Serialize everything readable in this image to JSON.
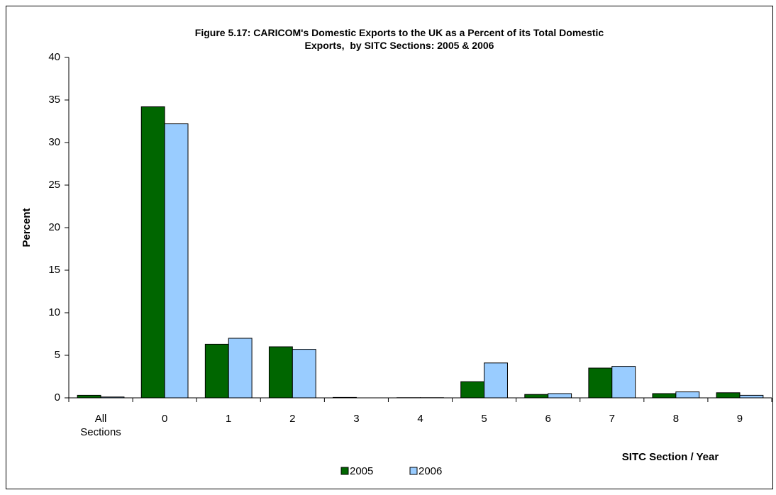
{
  "chart_data": {
    "type": "bar",
    "title": "Figure 5.17: CARICOM's Domestic Exports to the UK as a Percent of its Total Domestic\nExports,  by SITC Sections: 2005 & 2006",
    "x_label": "SITC Section / Year",
    "y_label": "Percent",
    "categories": [
      "All Sections",
      "0",
      "1",
      "2",
      "3",
      "4",
      "5",
      "6",
      "7",
      "8",
      "9"
    ],
    "series": [
      {
        "name": "2005",
        "color": "#006600",
        "values": [
          0.3,
          34.2,
          6.3,
          6.0,
          0.05,
          0.02,
          1.9,
          0.4,
          3.5,
          0.5,
          0.6
        ]
      },
      {
        "name": "2006",
        "color": "#99ccff",
        "values": [
          0.1,
          32.2,
          7.0,
          5.7,
          0,
          0.02,
          4.1,
          0.5,
          3.7,
          0.7,
          0.3
        ]
      }
    ],
    "ylim": [
      0,
      40
    ],
    "yticks": [
      0,
      5,
      10,
      15,
      20,
      25,
      30,
      35,
      40
    ],
    "grid": false,
    "legend": "bottom"
  }
}
